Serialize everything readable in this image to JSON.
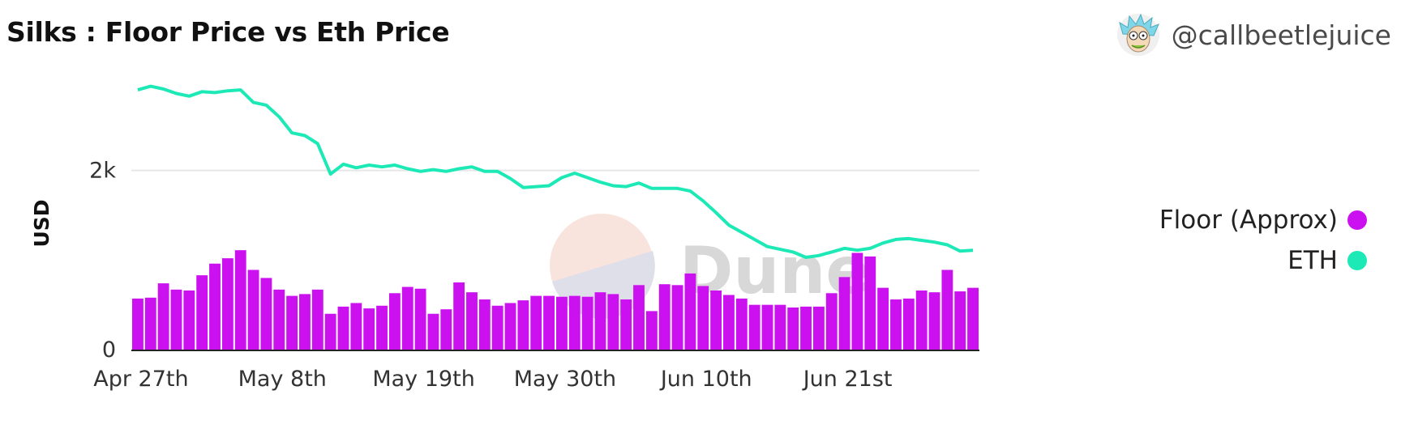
{
  "header": {
    "title": "Silks : Floor Price vs Eth Price",
    "author_handle": "@callbeetlejuice",
    "avatar_icon": "rick-avatar-icon"
  },
  "watermark": {
    "text": "Dune"
  },
  "colors": {
    "floor": "#cc11f0",
    "eth": "#1de9b6",
    "grid": "#e6e6e6"
  },
  "chart_data": {
    "type": "bar+line",
    "title": "Silks : Floor Price vs Eth Price",
    "ylabel": "USD",
    "xlabel": "",
    "ylim": [
      0,
      3000
    ],
    "yticks": [
      0,
      2000
    ],
    "ytick_labels": [
      "0",
      "2k"
    ],
    "xtick_labels": [
      "Apr 27th",
      "May 8th",
      "May 19th",
      "May 30th",
      "Jun 10th",
      "Jun 21st"
    ],
    "xtick_index": [
      0,
      11,
      22,
      33,
      44,
      55
    ],
    "legend_position": "right",
    "grid": true,
    "series": [
      {
        "name": "Floor (Approx)",
        "type": "bar",
        "values": [
          570,
          580,
          740,
          670,
          660,
          830,
          960,
          1020,
          1110,
          890,
          800,
          670,
          600,
          620,
          670,
          400,
          480,
          520,
          460,
          490,
          630,
          700,
          680,
          400,
          450,
          750,
          640,
          560,
          490,
          520,
          550,
          600,
          600,
          590,
          600,
          590,
          640,
          620,
          560,
          720,
          430,
          730,
          720,
          850,
          710,
          660,
          610,
          570,
          500,
          500,
          500,
          470,
          480,
          480,
          630,
          810,
          1080,
          1040,
          690,
          560,
          570,
          660,
          640,
          890,
          650,
          690
        ]
      },
      {
        "name": "ETH",
        "type": "line",
        "values": [
          2900,
          2940,
          2910,
          2860,
          2830,
          2880,
          2870,
          2890,
          2900,
          2760,
          2730,
          2600,
          2420,
          2390,
          2300,
          1960,
          2070,
          2030,
          2060,
          2040,
          2060,
          2020,
          1990,
          2010,
          1990,
          2020,
          2040,
          1990,
          1990,
          1910,
          1810,
          1820,
          1830,
          1920,
          1970,
          1920,
          1870,
          1830,
          1820,
          1860,
          1800,
          1800,
          1800,
          1770,
          1660,
          1530,
          1390,
          1310,
          1230,
          1150,
          1120,
          1090,
          1030,
          1050,
          1090,
          1130,
          1110,
          1130,
          1190,
          1230,
          1240,
          1220,
          1200,
          1170,
          1100,
          1110
        ]
      }
    ]
  }
}
